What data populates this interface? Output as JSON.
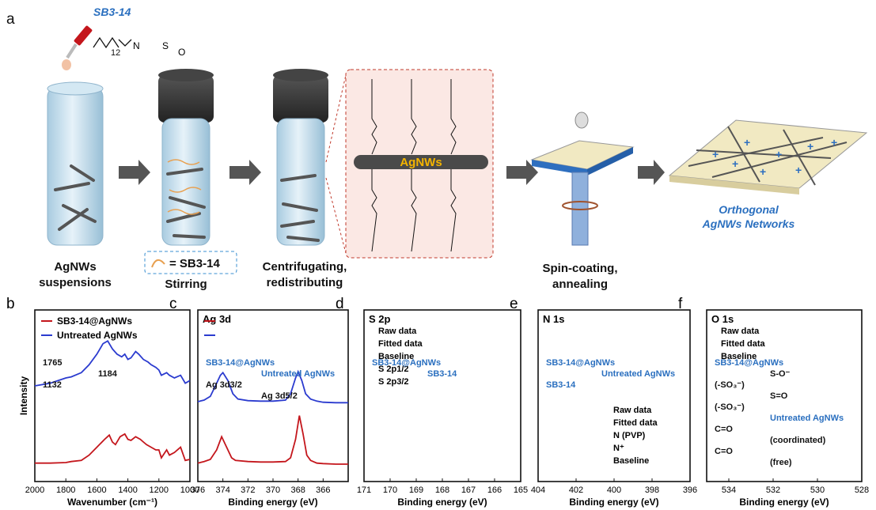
{
  "figure_part_a": {
    "letter": "a",
    "surfactant_name": "SB3-14",
    "subscript_12": "12",
    "wire_label": "AgNWs",
    "step_labels": {
      "suspension_l1": "AgNWs",
      "suspension_l2": "suspensions",
      "legend_eq": "=  SB3-14",
      "stirring": "Stirring",
      "centrifuge_l1": "Centrifugating,",
      "centrifuge_l2": "redistributing",
      "spin_l1": "Spin-coating,",
      "spin_l2": "annealing",
      "network_l1": "Orthogonal",
      "network_l2": "AgNWs Networks"
    }
  },
  "chart_data": [
    {
      "panel": "b",
      "type": "line",
      "xlabel": "Wavenumber (cm⁻¹)",
      "ylabel": "Intensity",
      "xlim": [
        2000,
        1000
      ],
      "xticks": [
        "2000",
        "1800",
        "1600",
        "1400",
        "1200",
        "1000"
      ],
      "series": [
        {
          "name": "SB3-14@AgNWs",
          "color": "#c4161c",
          "x": [
            2000,
            1900,
            1800,
            1765,
            1700,
            1650,
            1600,
            1550,
            1520,
            1500,
            1480,
            1450,
            1420,
            1400,
            1380,
            1350,
            1320,
            1300,
            1280,
            1250,
            1220,
            1200,
            1184,
            1150,
            1132,
            1100,
            1060,
            1030,
            1000
          ],
          "y": [
            0.05,
            0.05,
            0.06,
            0.08,
            0.1,
            0.2,
            0.35,
            0.5,
            0.58,
            0.45,
            0.4,
            0.55,
            0.6,
            0.5,
            0.48,
            0.55,
            0.5,
            0.45,
            0.4,
            0.35,
            0.3,
            0.3,
            0.15,
            0.3,
            0.2,
            0.25,
            0.35,
            0.1,
            0.12
          ]
        },
        {
          "name": "Untreated AgNWs",
          "color": "#2b3bcf",
          "x": [
            2000,
            1900,
            1800,
            1765,
            1700,
            1650,
            1600,
            1560,
            1530,
            1500,
            1470,
            1440,
            1420,
            1400,
            1380,
            1350,
            1330,
            1300,
            1270,
            1250,
            1220,
            1200,
            1184,
            1150,
            1132,
            1100,
            1060,
            1030,
            1000
          ],
          "y": [
            0.35,
            0.4,
            0.5,
            0.52,
            0.6,
            0.75,
            0.95,
            1.15,
            1.2,
            1.05,
            0.95,
            0.9,
            0.95,
            0.85,
            0.88,
            1.0,
            0.95,
            0.85,
            0.8,
            0.75,
            0.7,
            0.65,
            0.55,
            0.6,
            0.55,
            0.5,
            0.55,
            0.4,
            0.45
          ]
        }
      ],
      "annotations": [
        "1765",
        "1184",
        "1132"
      ]
    },
    {
      "panel": "c",
      "type": "line",
      "title": "Ag 3d",
      "xlabel": "Binding energy (eV)",
      "xlim": [
        376,
        364
      ],
      "xticks": [
        "376",
        "374",
        "372",
        "370",
        "368",
        "366"
      ],
      "series": [
        {
          "name": "SB3-14@AgNWs",
          "color": "#c4161c",
          "x": [
            376,
            375.5,
            375,
            374.5,
            374.1,
            373.7,
            373.3,
            373,
            372,
            371,
            370,
            369,
            368.6,
            368.2,
            367.9,
            367.6,
            367.3,
            367,
            366.5,
            366,
            365,
            364
          ],
          "y": [
            0.05,
            0.08,
            0.12,
            0.3,
            0.55,
            0.35,
            0.15,
            0.1,
            0.08,
            0.07,
            0.07,
            0.08,
            0.15,
            0.5,
            0.95,
            0.6,
            0.2,
            0.1,
            0.05,
            0.04,
            0.03,
            0.03
          ]
        },
        {
          "name": "Untreated AgNWs",
          "color": "#2b3bcf",
          "x": [
            376,
            375.5,
            375,
            374.6,
            374.2,
            374,
            373.6,
            373.2,
            372.8,
            372,
            371,
            370,
            369,
            368.6,
            368.2,
            368,
            367.7,
            367.4,
            367,
            366.5,
            366,
            365,
            364
          ],
          "y": [
            0.05,
            0.08,
            0.15,
            0.35,
            0.55,
            0.6,
            0.45,
            0.2,
            0.1,
            0.07,
            0.06,
            0.06,
            0.08,
            0.2,
            0.5,
            0.62,
            0.45,
            0.2,
            0.1,
            0.06,
            0.04,
            0.03,
            0.03
          ]
        }
      ],
      "annotations": [
        "SB3-14@AgNWs",
        "Untreated AgNWs",
        "Ag 3d3/2",
        "Ag 3d5/2"
      ]
    },
    {
      "panel": "d",
      "type": "line",
      "title": "S 2p",
      "xlabel": "Binding energy (eV)",
      "xlim": [
        171,
        165
      ],
      "xticks": [
        "171",
        "170",
        "169",
        "168",
        "167",
        "166",
        "165"
      ],
      "legend": [
        "Raw data",
        "Fitted data",
        "Baseline",
        "S 2p1/2",
        "S 2p3/2"
      ],
      "annotations": [
        "SB3-14@AgNWs",
        "SB3-14"
      ]
    },
    {
      "panel": "e",
      "type": "line",
      "title": "N 1s",
      "xlabel": "Binding energy (eV)",
      "xlim": [
        404,
        396
      ],
      "xticks": [
        "404",
        "402",
        "400",
        "398",
        "396"
      ],
      "legend": [
        "Raw data",
        "Fitted data",
        "N (PVP)",
        "N⁺",
        "Baseline"
      ],
      "annotations": [
        "SB3-14@AgNWs",
        "Untreated AgNWs",
        "SB3-14"
      ]
    },
    {
      "panel": "f",
      "type": "line",
      "title": "O 1s",
      "xlabel": "Binding energy (eV)",
      "xlim": [
        535,
        528
      ],
      "xticks": [
        "534",
        "532",
        "530",
        "528"
      ],
      "legend": [
        "Raw data",
        "Fitted data",
        "Baseline"
      ],
      "annotations": [
        "SB3-14@AgNWs",
        "S-O⁻",
        "(-SO₃⁻)",
        "S=O",
        "(-SO₃⁻)",
        "Untreated AgNWs",
        "C=O",
        "(coordinated)",
        "C=O",
        "(free)"
      ]
    }
  ]
}
